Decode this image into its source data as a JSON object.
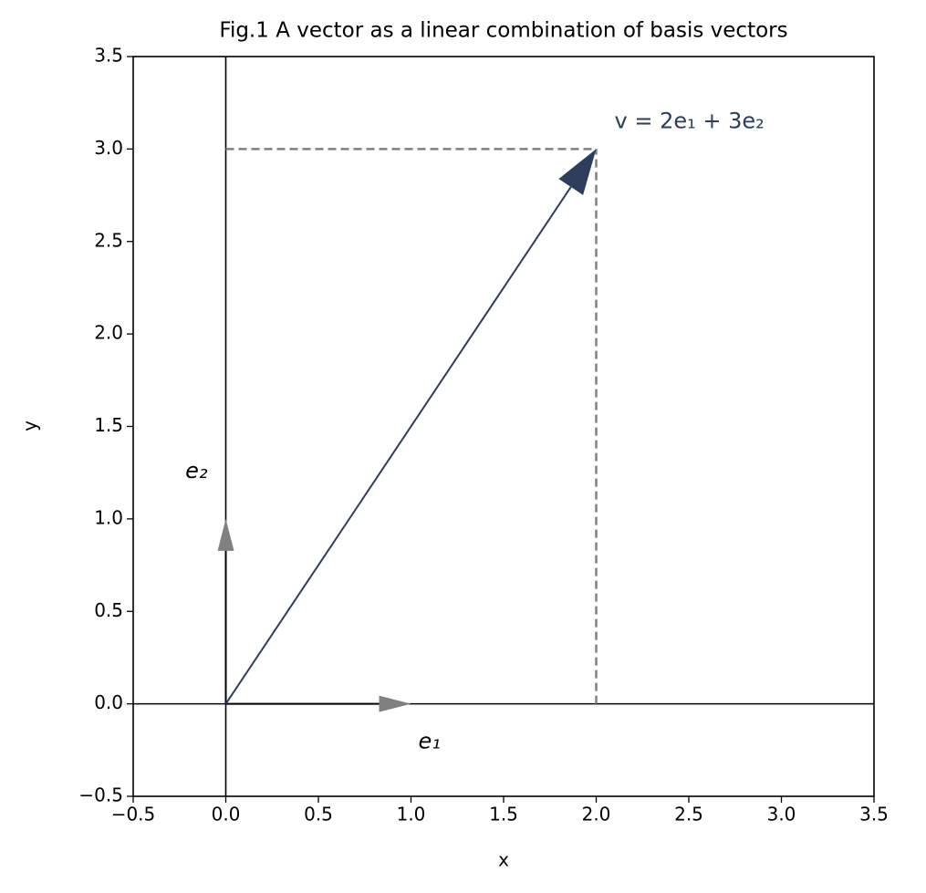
{
  "chart_data": {
    "type": "vector",
    "title": "Fig.1 A vector as a linear combination of basis vectors",
    "xlabel": "x",
    "ylabel": "y",
    "xlim": [
      -0.5,
      3.5
    ],
    "ylim": [
      -0.5,
      3.5
    ],
    "xticks": [
      {
        "value": -0.5,
        "label": "−0.5"
      },
      {
        "value": 0,
        "label": "0.0"
      },
      0.5,
      {
        "value": 1,
        "label": "1.0"
      },
      1.5,
      {
        "value": 2,
        "label": "2.0"
      },
      2.5,
      {
        "value": 3,
        "label": "3.0"
      },
      3.5
    ],
    "yticks": [
      {
        "value": -0.5,
        "label": "−0.5"
      },
      {
        "value": 0,
        "label": "0.0"
      },
      0.5,
      {
        "value": 1,
        "label": "1.0"
      },
      1.5,
      {
        "value": 2,
        "label": "2.0"
      },
      2.5,
      {
        "value": 3,
        "label": "3.0"
      },
      3.5
    ],
    "vectors": [
      {
        "name": "e₁",
        "color": "#808080",
        "x": 1,
        "y": 0
      },
      {
        "name": "e₂",
        "color": "#808080",
        "x": 0,
        "y": 1
      },
      {
        "name": "v = 2e₁ + 3e₂",
        "color": "#2c3e5a",
        "x": 2,
        "y": 3
      }
    ]
  }
}
